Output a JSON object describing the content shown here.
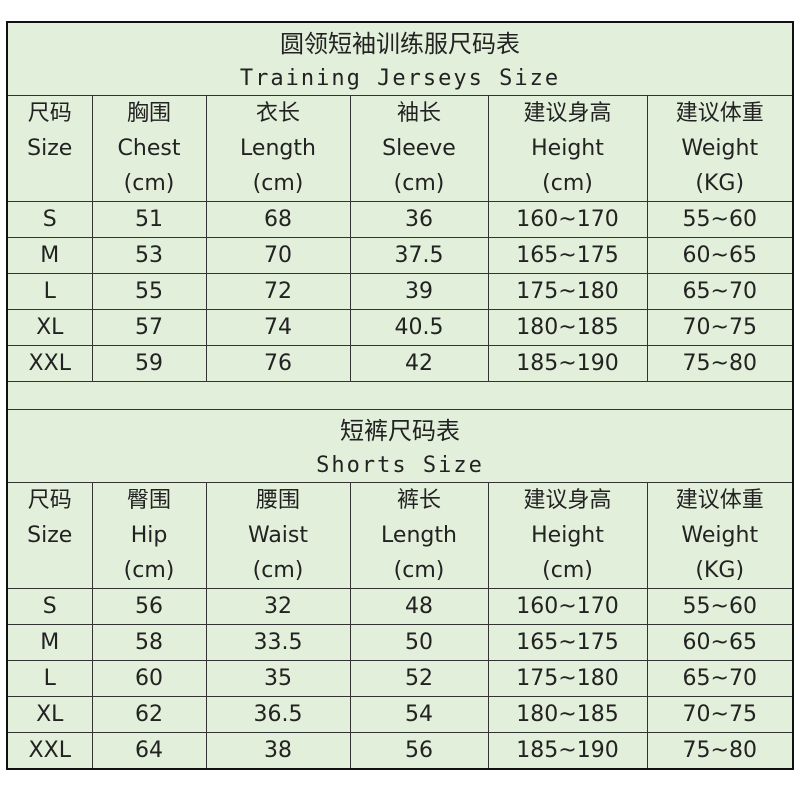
{
  "jerseys": {
    "title_cn": "圆领短袖训练服尺码表",
    "title_en": "Training Jerseys Size",
    "headers": [
      {
        "cn": "尺码",
        "en": "Size",
        "unit": ""
      },
      {
        "cn": "胸围",
        "en": "Chest",
        "unit": "(cm)"
      },
      {
        "cn": "衣长",
        "en": "Length",
        "unit": "(cm)"
      },
      {
        "cn": "袖长",
        "en": "Sleeve",
        "unit": "(cm)"
      },
      {
        "cn": "建议身高",
        "en": "Height",
        "unit": "(cm)"
      },
      {
        "cn": "建议体重",
        "en": "Weight",
        "unit": "(KG)"
      }
    ],
    "rows": [
      [
        "S",
        "51",
        "68",
        "36",
        "160~170",
        "55~60"
      ],
      [
        "M",
        "53",
        "70",
        "37.5",
        "165~175",
        "60~65"
      ],
      [
        "L",
        "55",
        "72",
        "39",
        "175~180",
        "65~70"
      ],
      [
        "XL",
        "57",
        "74",
        "40.5",
        "180~185",
        "70~75"
      ],
      [
        "XXL",
        "59",
        "76",
        "42",
        "185~190",
        "75~80"
      ]
    ]
  },
  "shorts": {
    "title_cn": "短裤尺码表",
    "title_en": "Shorts Size",
    "headers": [
      {
        "cn": "尺码",
        "en": "Size",
        "unit": ""
      },
      {
        "cn": "臀围",
        "en": "Hip",
        "unit": "(cm)"
      },
      {
        "cn": "腰围",
        "en": "Waist",
        "unit": "(cm)"
      },
      {
        "cn": "裤长",
        "en": "Length",
        "unit": "(cm)"
      },
      {
        "cn": "建议身高",
        "en": "Height",
        "unit": "(cm)"
      },
      {
        "cn": "建议体重",
        "en": "Weight",
        "unit": "(KG)"
      }
    ],
    "rows": [
      [
        "S",
        "56",
        "32",
        "48",
        "160~170",
        "55~60"
      ],
      [
        "M",
        "58",
        "33.5",
        "50",
        "165~175",
        "60~65"
      ],
      [
        "L",
        "60",
        "35",
        "52",
        "175~180",
        "65~70"
      ],
      [
        "XL",
        "62",
        "36.5",
        "54",
        "180~185",
        "70~75"
      ],
      [
        "XXL",
        "64",
        "38",
        "56",
        "185~190",
        "75~80"
      ]
    ]
  },
  "colors": {
    "background": "#e2efda",
    "border": "#333333"
  }
}
